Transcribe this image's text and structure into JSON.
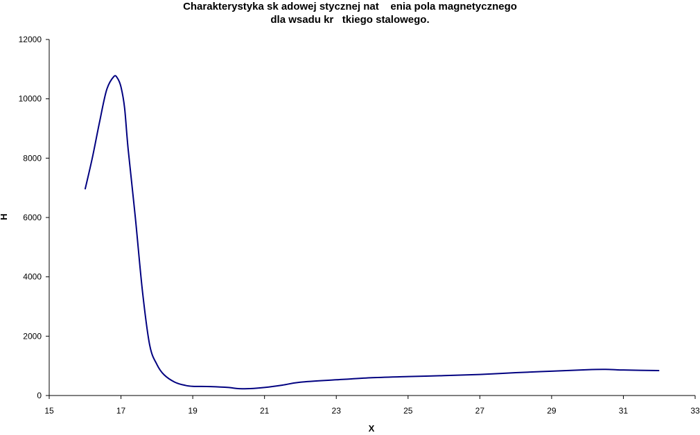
{
  "chart_data": {
    "type": "line",
    "title_line1": "Charakterystyka sk adowej stycznej nat    enia pola magnetycznego",
    "title_line2": "dla wsadu kr   tkiego stalowego.",
    "xlabel": "X",
    "ylabel": "H",
    "xlim": [
      15,
      33
    ],
    "ylim": [
      0,
      12000
    ],
    "xticks": [
      15,
      17,
      19,
      21,
      23,
      25,
      27,
      29,
      31,
      33
    ],
    "yticks": [
      0,
      2000,
      4000,
      6000,
      8000,
      10000,
      12000
    ],
    "grid": false,
    "line_color": "#000080",
    "series": [
      {
        "x": [
          16.0,
          16.2,
          16.4,
          16.6,
          16.8,
          16.9,
          17.0,
          17.1,
          17.2,
          17.4,
          17.6,
          17.8,
          18.0,
          18.2,
          18.5,
          18.8,
          19.0,
          19.5,
          20.0,
          20.3,
          20.7,
          21.0,
          21.5,
          22.0,
          23.0,
          24.0,
          25.0,
          26.0,
          27.0,
          28.0,
          29.0,
          30.0,
          30.5,
          31.0,
          32.0
        ],
        "y": [
          6950,
          8000,
          9200,
          10300,
          10750,
          10700,
          10400,
          9700,
          8300,
          6000,
          3500,
          1700,
          1050,
          700,
          450,
          340,
          310,
          300,
          270,
          230,
          240,
          270,
          350,
          450,
          530,
          600,
          640,
          670,
          710,
          770,
          820,
          870,
          880,
          860,
          840
        ]
      }
    ]
  }
}
